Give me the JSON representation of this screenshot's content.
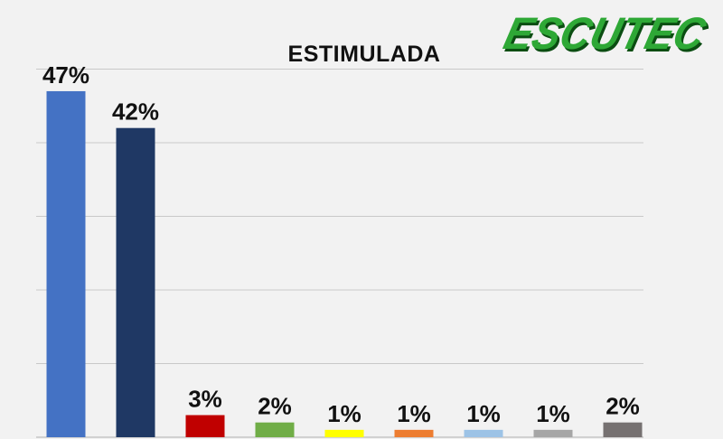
{
  "logo": {
    "text": "ESCUTEC",
    "color": "#2ea836",
    "shadow": "#0b4d12"
  },
  "chart_data": {
    "type": "bar",
    "title": "ESTIMULADA",
    "xlabel": "",
    "ylabel": "",
    "ylim": [
      0,
      50
    ],
    "grid": true,
    "gridlines": [
      10,
      20,
      30,
      40,
      50
    ],
    "values": [
      47,
      42,
      3,
      2,
      1,
      1,
      1,
      1,
      2
    ],
    "data_labels": [
      "47%",
      "42%",
      "3%",
      "2%",
      "1%",
      "1%",
      "1%",
      "1%",
      "2%"
    ],
    "colors": [
      "#4472c4",
      "#1f3864",
      "#c00000",
      "#70ad47",
      "#ffff00",
      "#ed7d31",
      "#9dc3e6",
      "#a6a6a6",
      "#767171"
    ]
  }
}
